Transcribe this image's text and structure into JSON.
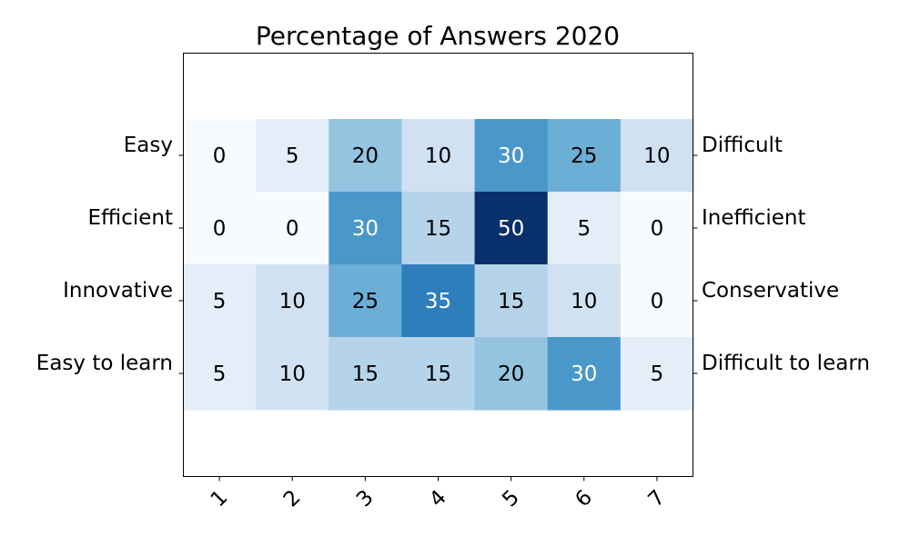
{
  "chart_data": {
    "type": "heatmap",
    "title": "Percentage of Answers 2020",
    "x_tick_labels": [
      "1",
      "2",
      "3",
      "4",
      "5",
      "6",
      "7"
    ],
    "left_labels": [
      "Easy",
      "Efficient",
      "Innovative",
      "Easy to learn"
    ],
    "right_labels": [
      "Difficult",
      "Inefficient",
      "Conservative",
      "Difficult to learn"
    ],
    "values": [
      [
        0,
        5,
        20,
        10,
        30,
        25,
        10
      ],
      [
        0,
        0,
        30,
        15,
        50,
        5,
        0
      ],
      [
        5,
        10,
        25,
        35,
        15,
        10,
        0
      ],
      [
        5,
        10,
        15,
        15,
        20,
        30,
        5
      ]
    ],
    "value_range": [
      0,
      50
    ],
    "colormap": "Blues",
    "grid": false
  }
}
